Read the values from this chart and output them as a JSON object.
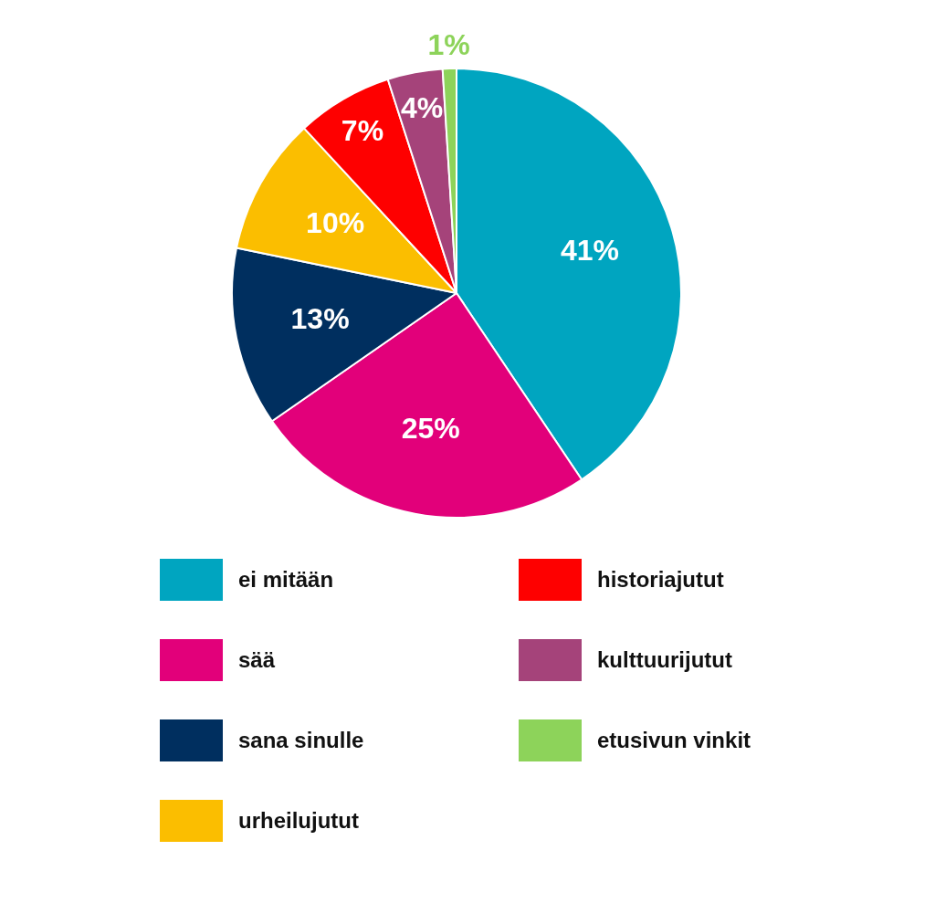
{
  "chart_data": {
    "type": "pie",
    "categories": [
      "ei mitään",
      "sää",
      "sana sinulle",
      "urheilujutut",
      "historiajutut",
      "kulttuurijutut",
      "etusivun vinkit"
    ],
    "values": [
      41,
      25,
      13,
      10,
      7,
      4,
      1
    ],
    "colors": [
      "#00a5c0",
      "#e2007a",
      "#002f5f",
      "#fbbe00",
      "#fe0000",
      "#a5437a",
      "#8dd35a"
    ],
    "value_labels": [
      "41%",
      "25%",
      "13%",
      "10%",
      "7%",
      "4%",
      "1%"
    ],
    "legend": "bottom"
  }
}
